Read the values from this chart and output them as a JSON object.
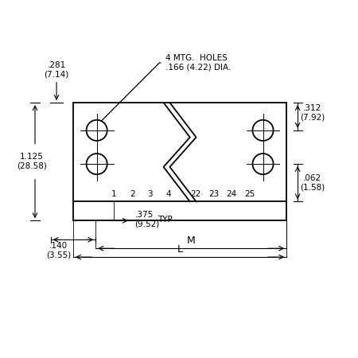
{
  "bg_color": "#ffffff",
  "line_color": "#000000",
  "text_color": "#000000",
  "figsize": [
    4.5,
    4.5
  ],
  "dpi": 100,
  "annotations": {
    "mtg_holes": "4 MTG.  HOLES\n.166 (4.22) DIA.",
    "top_left_dim": ".281\n(7.14)",
    "height_dim": "1.125\n(28.58)",
    "bot_left_dim": ".140\n(3.55)",
    "pitch_dim": ".375\n(9.52)",
    "pitch_label": "TYP",
    "M_label": "M",
    "L_label": "L",
    "right_top_dim": ".312\n(7.92)",
    "right_bot_dim": ".062\n(1.58)",
    "pin_labels_left": [
      "1",
      "2",
      "3",
      "4"
    ],
    "pin_labels_right": [
      "22",
      "23",
      "24",
      "25"
    ]
  }
}
